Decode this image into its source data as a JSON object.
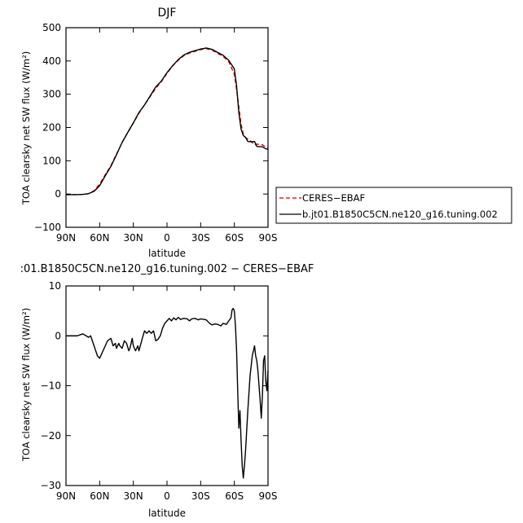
{
  "chart_data": [
    {
      "type": "line",
      "title": "DJF",
      "xlabel": "latitude",
      "ylabel": "TOA clearsky net SW flux (W/m²)",
      "xlim": [
        -90,
        90
      ],
      "ylim": [
        -100,
        500
      ],
      "xticks": [
        -90,
        -60,
        -30,
        0,
        30,
        60,
        90
      ],
      "xtick_labels": [
        "90N",
        "60N",
        "30N",
        "0",
        "30S",
        "60S",
        "90S"
      ],
      "yticks": [
        -100,
        0,
        100,
        200,
        300,
        400,
        500
      ],
      "ytick_labels": [
        "−100",
        "0",
        "100",
        "200",
        "300",
        "400",
        "500"
      ],
      "grid": false,
      "legend": "outside-right",
      "series": [
        {
          "name": "CERES−EBAF",
          "color": "#cc0000",
          "dash": "dashed",
          "x": [
            -90,
            -80,
            -75,
            -70,
            -65,
            -60,
            -55,
            -50,
            -45,
            -40,
            -35,
            -30,
            -25,
            -20,
            -15,
            -10,
            -5,
            0,
            5,
            10,
            15,
            20,
            25,
            30,
            35,
            40,
            45,
            50,
            55,
            60,
            62,
            64,
            66,
            68,
            70,
            72,
            75,
            78,
            80,
            85,
            88,
            90
          ],
          "y": [
            -2,
            -2,
            -1,
            1,
            10,
            30,
            58,
            85,
            120,
            155,
            185,
            213,
            243,
            268,
            293,
            318,
            338,
            363,
            385,
            402,
            416,
            424,
            429,
            434,
            437,
            433,
            423,
            414,
            398,
            360,
            315,
            262,
            210,
            180,
            170,
            165,
            158,
            148,
            150,
            148,
            141,
            140
          ]
        },
        {
          "name": "b.jt01.B1850C5CN.ne120_g16.tuning.002",
          "color": "#000000",
          "dash": "solid",
          "x": [
            -90,
            -80,
            -75,
            -70,
            -65,
            -60,
            -55,
            -50,
            -45,
            -40,
            -35,
            -30,
            -25,
            -20,
            -15,
            -10,
            -5,
            0,
            5,
            10,
            15,
            20,
            25,
            30,
            35,
            40,
            45,
            50,
            55,
            60,
            62,
            64,
            66,
            68,
            70,
            72,
            75,
            78,
            80,
            85,
            88,
            90
          ],
          "y": [
            -2,
            -2,
            -1,
            1,
            8,
            25,
            55,
            83,
            118,
            155,
            185,
            214,
            245,
            268,
            295,
            322,
            340,
            365,
            386,
            404,
            418,
            426,
            431,
            436,
            439,
            435,
            426,
            417,
            402,
            376,
            325,
            245,
            195,
            176,
            170,
            158,
            157,
            158,
            143,
            142,
            136,
            134
          ]
        }
      ]
    },
    {
      "type": "line",
      "title": ":01.B1850C5CN.ne120_g16.tuning.002 − CERES−EBAF",
      "xlabel": "latitude",
      "ylabel": "TOA clearsky net SW flux (W/m²)",
      "xlim": [
        -90,
        90
      ],
      "ylim": [
        -30,
        10
      ],
      "xticks": [
        -90,
        -60,
        -30,
        0,
        30,
        60,
        90
      ],
      "xtick_labels": [
        "90N",
        "60N",
        "30N",
        "0",
        "30S",
        "60S",
        "90S"
      ],
      "yticks": [
        -30,
        -20,
        -10,
        0,
        10
      ],
      "ytick_labels": [
        "−30",
        "−20",
        "−10",
        "0",
        "10"
      ],
      "grid": false,
      "series": [
        {
          "color": "#000000",
          "dash": "solid",
          "x": [
            -90,
            -80,
            -75,
            -72,
            -70,
            -68,
            -65,
            -62,
            -60,
            -58,
            -55,
            -53,
            -50,
            -48,
            -46,
            -45,
            -43,
            -42,
            -40,
            -38,
            -36,
            -34,
            -33,
            -31,
            -30,
            -28,
            -26,
            -25,
            -22,
            -20,
            -18,
            -16,
            -14,
            -12,
            -10,
            -8,
            -6,
            -4,
            -2,
            0,
            2,
            4,
            6,
            8,
            10,
            12,
            15,
            18,
            20,
            22,
            25,
            28,
            30,
            33,
            35,
            38,
            40,
            43,
            45,
            48,
            50,
            53,
            55,
            57,
            58,
            59,
            60,
            61,
            62,
            63,
            64,
            65,
            66,
            67,
            68,
            69,
            70,
            72,
            74,
            76,
            78,
            79,
            80,
            81,
            82,
            83,
            84,
            85,
            86,
            87,
            88,
            89,
            90
          ],
          "y": [
            0,
            0,
            0.4,
            0,
            -0.3,
            0,
            -2,
            -4,
            -4.5,
            -3.5,
            -2,
            -1,
            -0.5,
            -2,
            -1.5,
            -2.5,
            -1.5,
            -2,
            -2.5,
            -1,
            -1.5,
            -3,
            -2.5,
            -0.5,
            -2,
            -3,
            -2,
            -3,
            -0.5,
            1,
            0.5,
            1,
            0.5,
            1,
            -1,
            -0.7,
            0,
            1.5,
            2.5,
            3,
            3.5,
            3,
            3.6,
            3.2,
            3.7,
            3.3,
            3.5,
            3.4,
            3,
            3.4,
            3.5,
            3.2,
            3.4,
            3.3,
            3.2,
            2.5,
            2.2,
            2.4,
            2.3,
            2,
            2.5,
            2.3,
            3,
            3.6,
            5.2,
            5.5,
            5,
            2,
            -3,
            -11,
            -18.5,
            -15,
            -21,
            -26,
            -28.5,
            -26,
            -23,
            -15,
            -8,
            -4,
            -2,
            -4,
            -5,
            -7,
            -10,
            -13,
            -16.5,
            -12,
            -5,
            -4,
            -9,
            -11,
            -7
          ]
        }
      ]
    }
  ]
}
